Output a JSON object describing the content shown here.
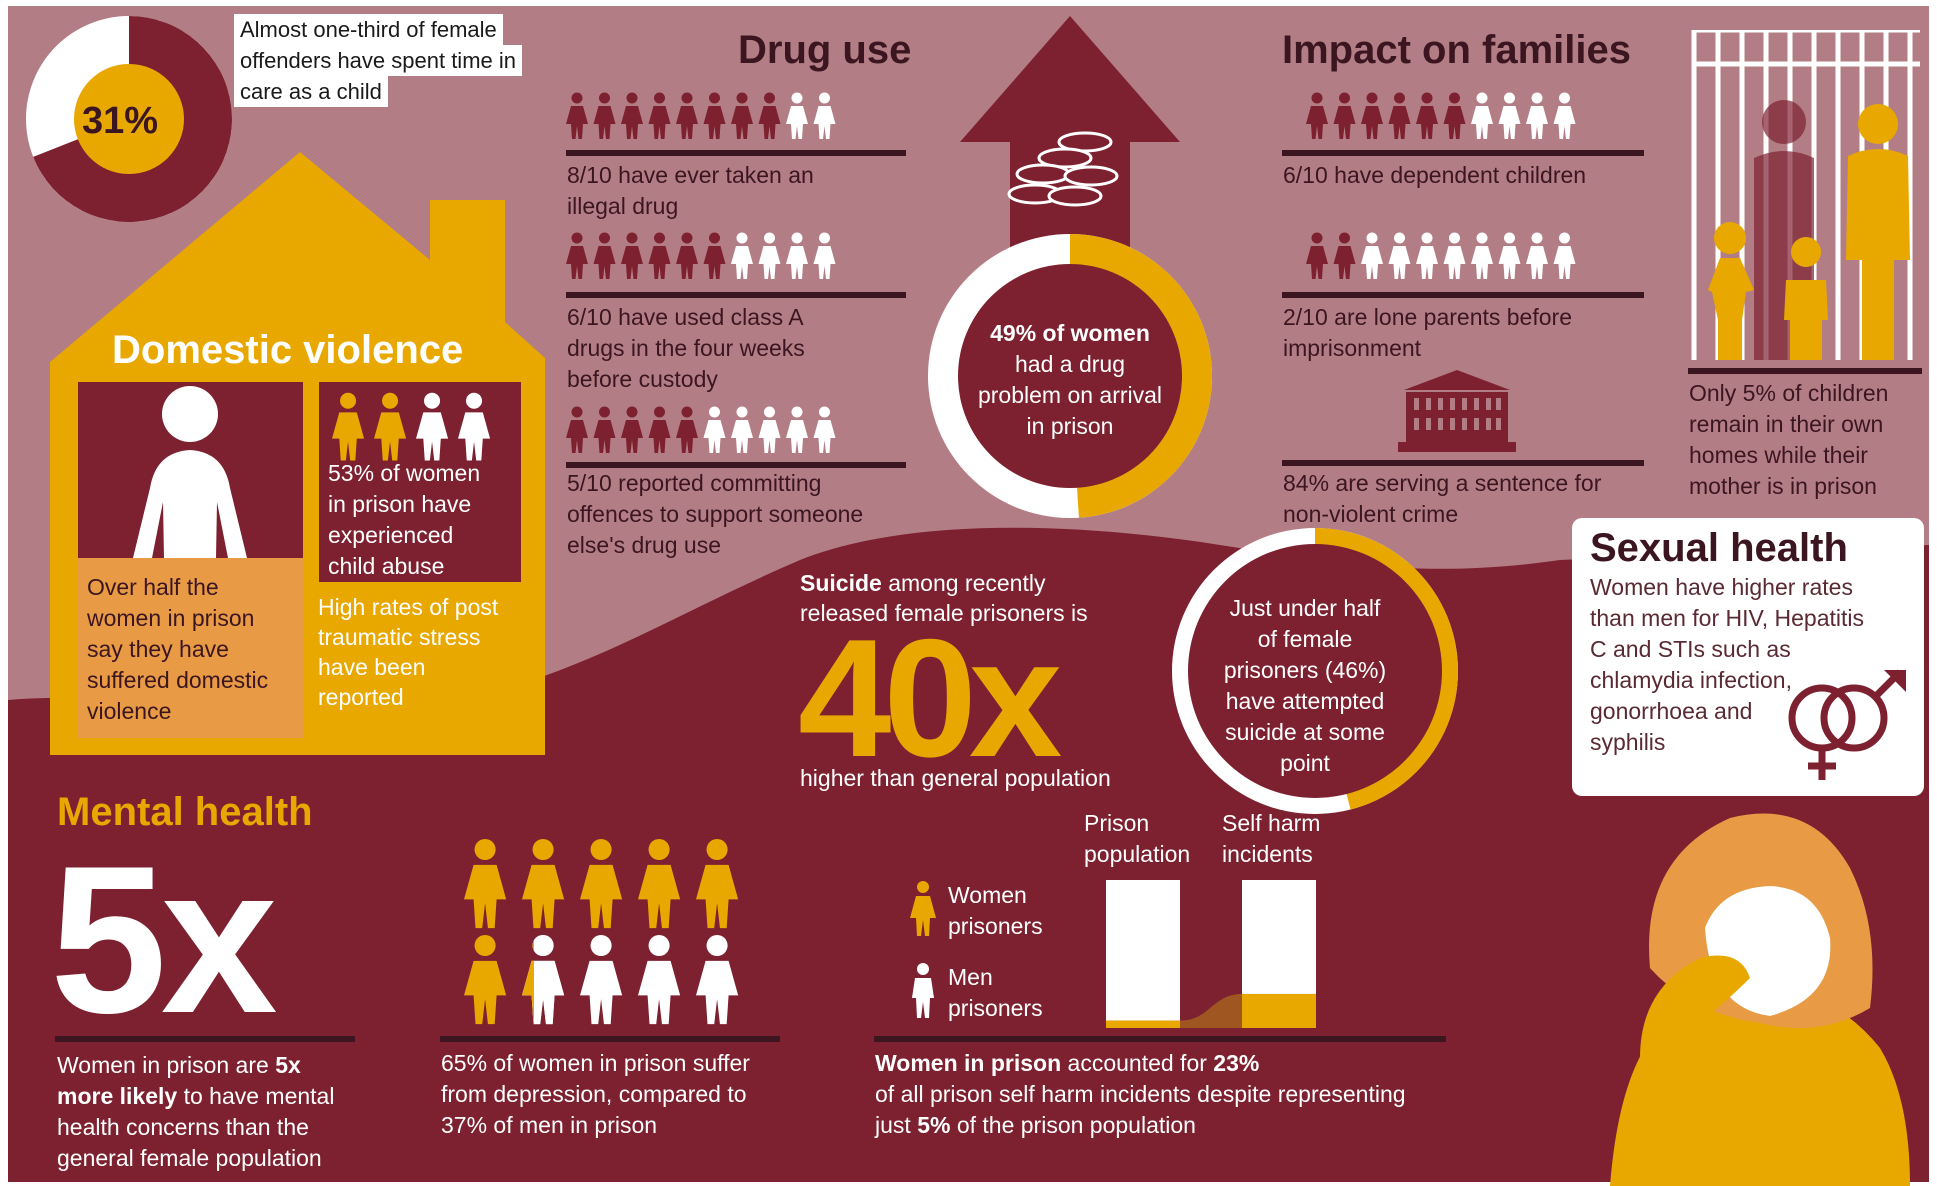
{
  "colors": {
    "maroon": "#7d2130",
    "rose": "#b37d85",
    "gold": "#e8a800",
    "orange": "#e89a45",
    "white": "#ffffff",
    "dark": "#3b1620"
  },
  "care": {
    "percent": "31%",
    "fraction": 0.31,
    "lines": [
      "Almost one-third of female",
      "offenders have spent time in",
      "care as a child"
    ]
  },
  "domestic": {
    "title": "Domestic violence",
    "left_text": [
      "Over half the",
      "women in prison",
      "say they have",
      "suffered domestic",
      "violence"
    ],
    "abuse_text": [
      "53% of women",
      "in prison have",
      "experienced",
      "child abuse"
    ],
    "ptsd_text": [
      "High rates of post",
      "traumatic stress",
      "have been",
      "reported"
    ]
  },
  "drug": {
    "title": "Drug use",
    "rows": [
      {
        "filled": 8,
        "total": 10,
        "lines": [
          "8/10 have ever taken an",
          "illegal drug"
        ]
      },
      {
        "filled": 6,
        "total": 10,
        "lines": [
          "6/10 have used class A",
          "drugs in the four weeks",
          "before custody"
        ]
      },
      {
        "filled": 5,
        "total": 10,
        "lines": [
          "5/10 reported committing",
          "offences to support someone",
          "else's drug use"
        ]
      }
    ],
    "ring": {
      "fraction": 0.49,
      "bold": "49% of women",
      "lines": [
        "had a drug",
        "problem on arrival",
        "in prison"
      ]
    }
  },
  "families": {
    "title": "Impact on families",
    "rows": [
      {
        "filled": 6,
        "total": 10,
        "lines": [
          "6/10 have dependent children"
        ]
      },
      {
        "filled": 2,
        "total": 10,
        "lines": [
          "2/10 are lone parents before",
          "imprisonment"
        ]
      }
    ],
    "nonviolent": [
      "84% are serving a sentence for",
      "non-violent crime"
    ],
    "children_home": [
      "Only 5% of children",
      "remain in their own",
      "homes while their",
      "mother is in prison"
    ]
  },
  "sexual": {
    "title": "Sexual health",
    "lines": [
      "Women have higher rates",
      "than men for HIV, Hepatitis",
      "C and STIs such as",
      "chlamydia infection,",
      "gonorrhoea and",
      "syphilis"
    ]
  },
  "suicide": {
    "bold": "Suicide",
    "line1": " among recently",
    "line2": "released female prisoners is",
    "big": "40x",
    "below": "higher than general population",
    "ring": {
      "fraction": 0.46,
      "lines": [
        "Just under half",
        "of female",
        "prisoners (46%)",
        "have attempted",
        "suicide at some",
        "point"
      ]
    }
  },
  "mental": {
    "title": "Mental health",
    "big": "5x",
    "text": {
      "pre": "Women in prison are ",
      "b1": "5x",
      "b2": "more likely",
      "post": " to have mental",
      "l3": "health concerns than the",
      "l4": "general female population"
    },
    "depression": {
      "women": 0.65,
      "men": 0.37,
      "lines": [
        "65% of women in prison suffer",
        "from depression, compared to",
        "37% of men in prison"
      ]
    }
  },
  "selfharm": {
    "col1": [
      "Prison",
      "population"
    ],
    "col2": [
      "Self harm",
      "incidents"
    ],
    "legend_women": [
      "Women",
      "prisoners"
    ],
    "legend_men": [
      "Men",
      "prisoners"
    ],
    "chart_data": {
      "type": "bar",
      "categories": [
        "Prison population",
        "Self harm incidents"
      ],
      "series": [
        {
          "name": "Women prisoners",
          "values": [
            5,
            23
          ]
        },
        {
          "name": "Men prisoners",
          "values": [
            95,
            77
          ]
        }
      ],
      "ylim": [
        0,
        100
      ]
    },
    "caption": {
      "b1": "Women in prison",
      "t1": " accounted for ",
      "b2": "23%",
      "l2": "of all prison self harm incidents despite representing",
      "l3a": "just ",
      "b3": "5%",
      "l3b": " of the prison population"
    }
  }
}
